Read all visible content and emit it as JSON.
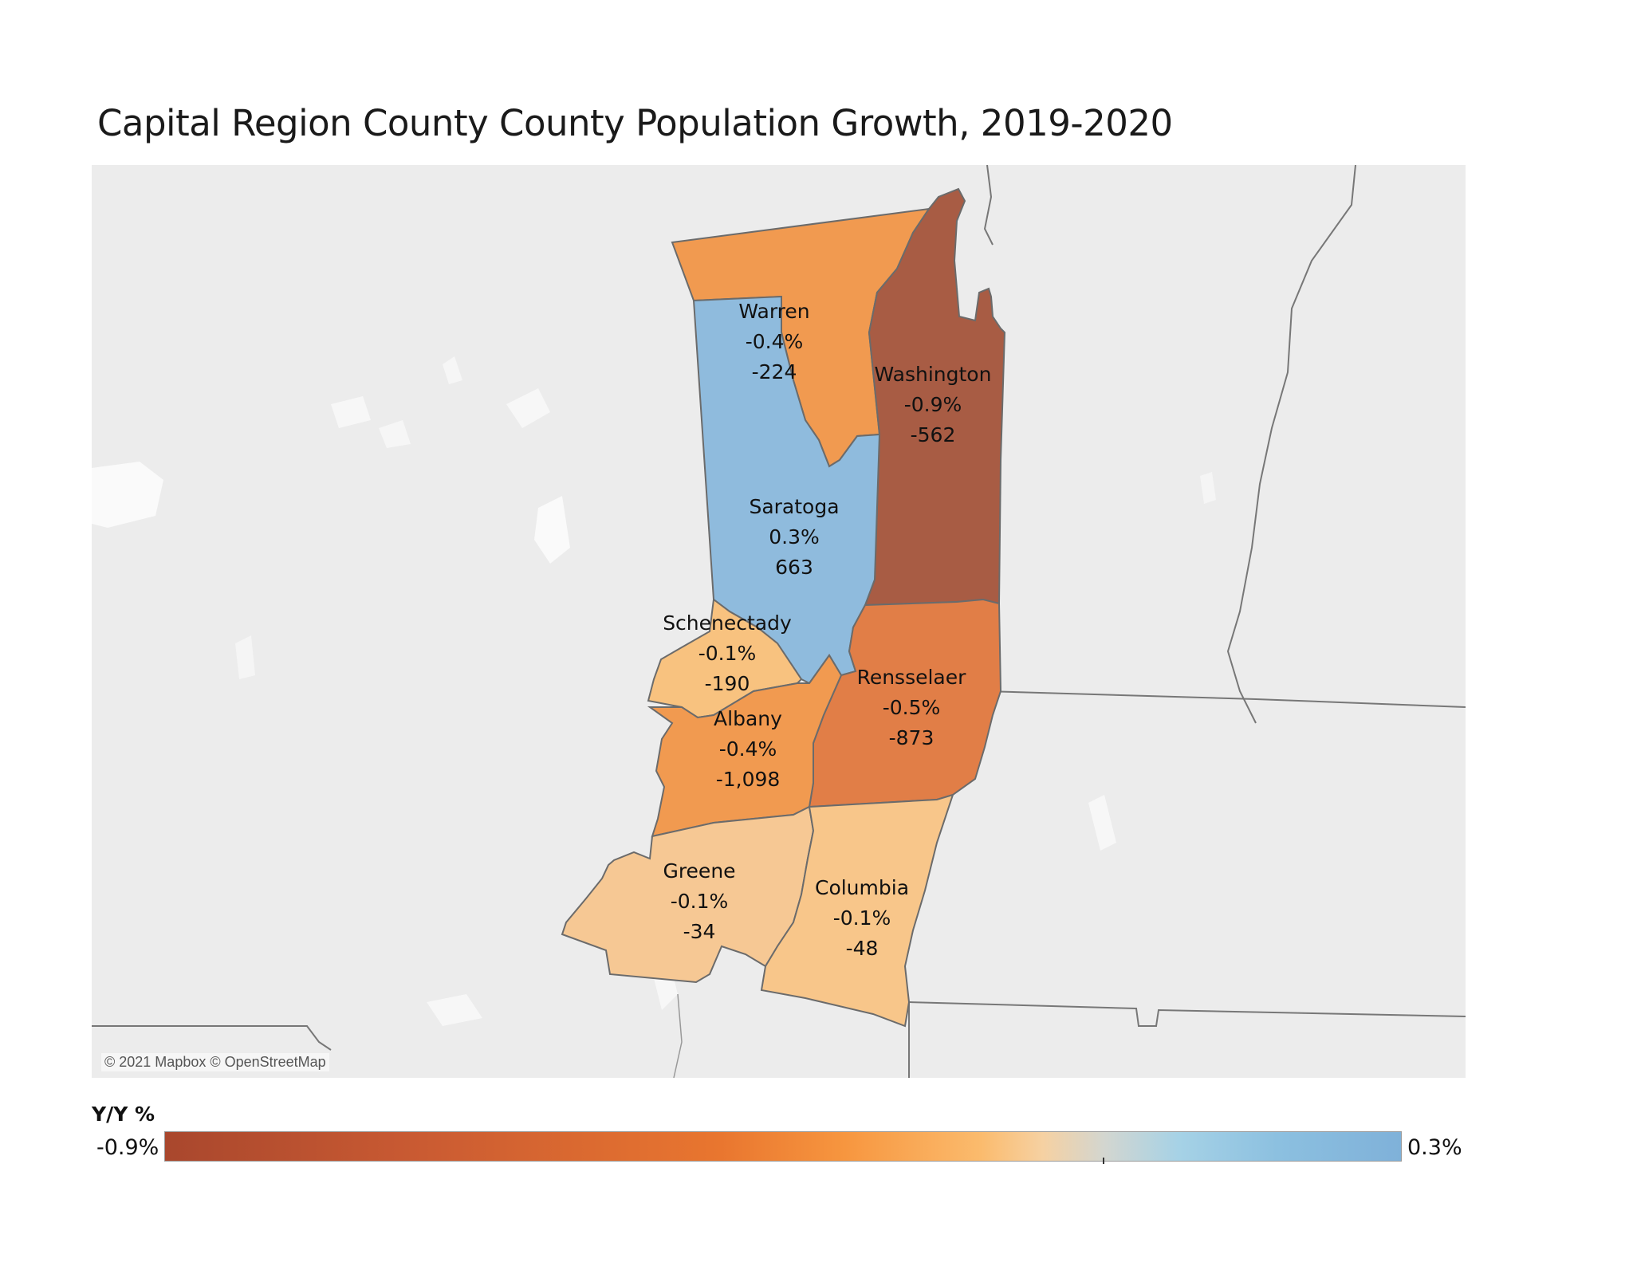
{
  "title": "Capital Region County County Population Growth, 2019-2020",
  "attribution": "© 2021 Mapbox © OpenStreetMap",
  "legend": {
    "title": "Y/Y %",
    "min_label": "-0.9%",
    "max_label": "0.3%",
    "min_value": -0.9,
    "max_value": 0.3
  },
  "counties": [
    {
      "name": "Warren",
      "pct": "-0.4%",
      "change": "-224",
      "color": "#f19a50"
    },
    {
      "name": "Washington",
      "pct": "-0.9%",
      "change": "-562",
      "color": "#a85c44"
    },
    {
      "name": "Saratoga",
      "pct": "0.3%",
      "change": "663",
      "color": "#8fbbdd"
    },
    {
      "name": "Schenectady",
      "pct": "-0.1%",
      "change": "-190",
      "color": "#f8c27f"
    },
    {
      "name": "Rensselaer",
      "pct": "-0.5%",
      "change": "-873",
      "color": "#e17e47"
    },
    {
      "name": "Albany",
      "pct": "-0.4%",
      "change": "-1,098",
      "color": "#f19a50"
    },
    {
      "name": "Greene",
      "pct": "-0.1%",
      "change": "-34",
      "color": "#f6c894"
    },
    {
      "name": "Columbia",
      "pct": "-0.1%",
      "change": "-48",
      "color": "#f8c68a"
    }
  ]
}
